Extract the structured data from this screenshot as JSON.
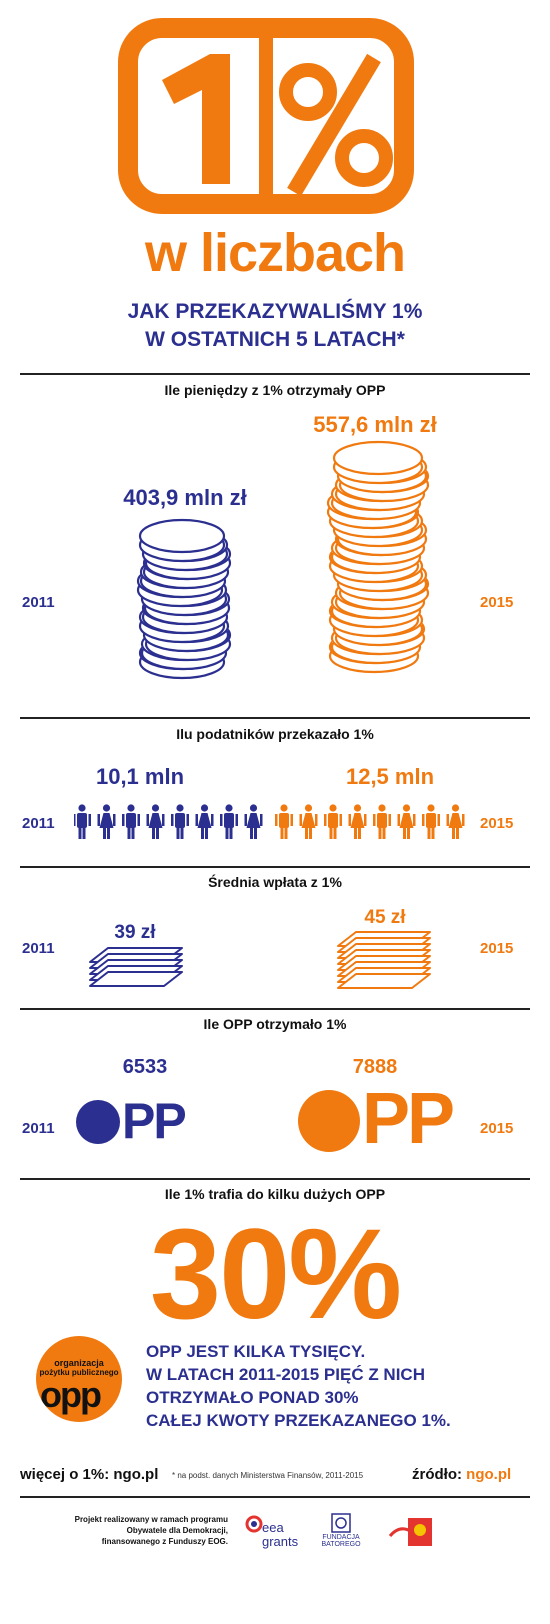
{
  "header": {
    "logo_text": "1%",
    "subtitle": "w liczbach",
    "heading_line1": "JAK PRZEKAZYWALIŚMY 1%",
    "heading_line2": "W OSTATNICH 5 LATACH*"
  },
  "colors": {
    "navy": "#2b2f8f",
    "orange": "#f07a10",
    "ink": "#111111"
  },
  "sections": {
    "money": {
      "title": "Ile pieniędzy z 1% otrzymały OPP",
      "left_year": "2011",
      "right_year": "2015",
      "left_value": "403,9 mln zł",
      "right_value": "557,6 mln zł",
      "icon": "coin-stack-icon"
    },
    "taxpayers": {
      "title": "Ilu podatników przekazało 1%",
      "left_year": "2011",
      "right_year": "2015",
      "left_value": "10,1 mln",
      "right_value": "12,5 mln",
      "icon": "person-icon"
    },
    "average": {
      "title": "Średnia wpłata z 1%",
      "left_year": "2011",
      "right_year": "2015",
      "left_value": "39 zł",
      "right_value": "45 zł",
      "icon": "banknote-stack-icon"
    },
    "opp_count": {
      "title": "Ile OPP otrzymało 1%",
      "left_year": "2011",
      "right_year": "2015",
      "left_value": "6533",
      "right_value": "7888",
      "logo_text": "PP"
    },
    "big_opp": {
      "title": "Ile 1% trafia do kilku dużych OPP",
      "percent": "30%",
      "badge_line1": "organizacja",
      "badge_line2": "pożytku publicznego",
      "badge_logo": "opp",
      "text_line1": "OPP JEST KILKA TYSIĘCY.",
      "text_line2": "W LATACH 2011-2015 PIĘĆ Z NICH",
      "text_line3": "OTRZYMAŁO PONAD 30%",
      "text_line4": "CAŁEJ KWOTY PRZEKAZANEGO 1%."
    }
  },
  "footer": {
    "more_label": "więcej o 1%:",
    "more_link": "ngo.pl",
    "note": "* na podst. danych Ministerstwa Finansów, 2011-2015",
    "source_label": "źródło:",
    "source_link": "ngo.pl",
    "project_line1": "Projekt realizowany w ramach programu",
    "project_line2": "Obywatele dla Demokracji,",
    "project_line3": "finansowanego z Funduszy EOG.",
    "eea_line1": "eea",
    "eea_line2": "grants",
    "batory_line1": "FUNDACJA",
    "batory_line2": "BATOREGO"
  }
}
